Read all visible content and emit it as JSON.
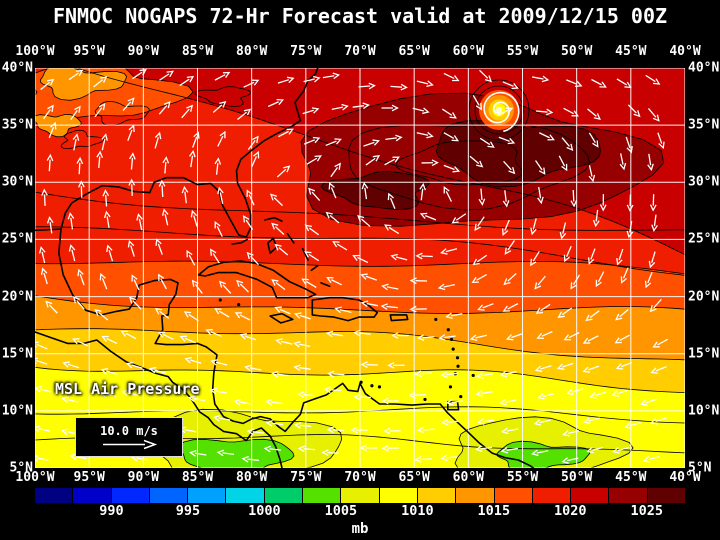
{
  "title": "FNMOC NOGAPS 72-Hr Forecast valid at 2009/12/15 00Z",
  "map": {
    "variable_label": "MSL Air Pressure",
    "wind_scale_label": "10.0 m/s",
    "lon_labels": [
      "100°W",
      "95°W",
      "90°W",
      "85°W",
      "80°W",
      "75°W",
      "70°W",
      "65°W",
      "60°W",
      "55°W",
      "50°W",
      "45°W",
      "40°W"
    ],
    "lat_labels": [
      "40°N",
      "35°N",
      "30°N",
      "25°N",
      "20°N",
      "15°N",
      "10°N",
      "5°N"
    ]
  },
  "colorbar": {
    "unit": "mb",
    "tick_labels": [
      "990",
      "995",
      "1000",
      "1005",
      "1010",
      "1015",
      "1020",
      "1025"
    ],
    "colors": [
      "#000082",
      "#0000c8",
      "#0028ff",
      "#0064ff",
      "#00a0ff",
      "#00d4e6",
      "#00cd69",
      "#55e100",
      "#e6f000",
      "#ffff00",
      "#ffcd00",
      "#ff9600",
      "#ff5000",
      "#f01e00",
      "#c80000",
      "#960000",
      "#600000"
    ]
  },
  "chart_data": {
    "type": "heatmap",
    "title": "FNMOC NOGAPS 72-Hr Forecast valid at 2009/12/15 00Z",
    "variable": "MSL Air Pressure",
    "units": "mb",
    "colorbar_ticks": [
      990,
      995,
      1000,
      1005,
      1010,
      1015,
      1020,
      1025
    ],
    "lon_range": [
      "100°W",
      "40°W"
    ],
    "lat_range": [
      "5°N",
      "40°N"
    ],
    "wind_scale_m_s": 10.0,
    "notes": "Filled pressure contours with wind arrows: broad subtropical high ~1020-1026 mb (dark red) over the central North Atlantic near 25-37N; cyclonic spiral feature near 36N 57W; pressure decreases southward through orange/yellow (~1008-1015 mb) to green patches (~1002-1007 mb) near 5-10N; easterly trade-wind arrows south of 20N."
  }
}
